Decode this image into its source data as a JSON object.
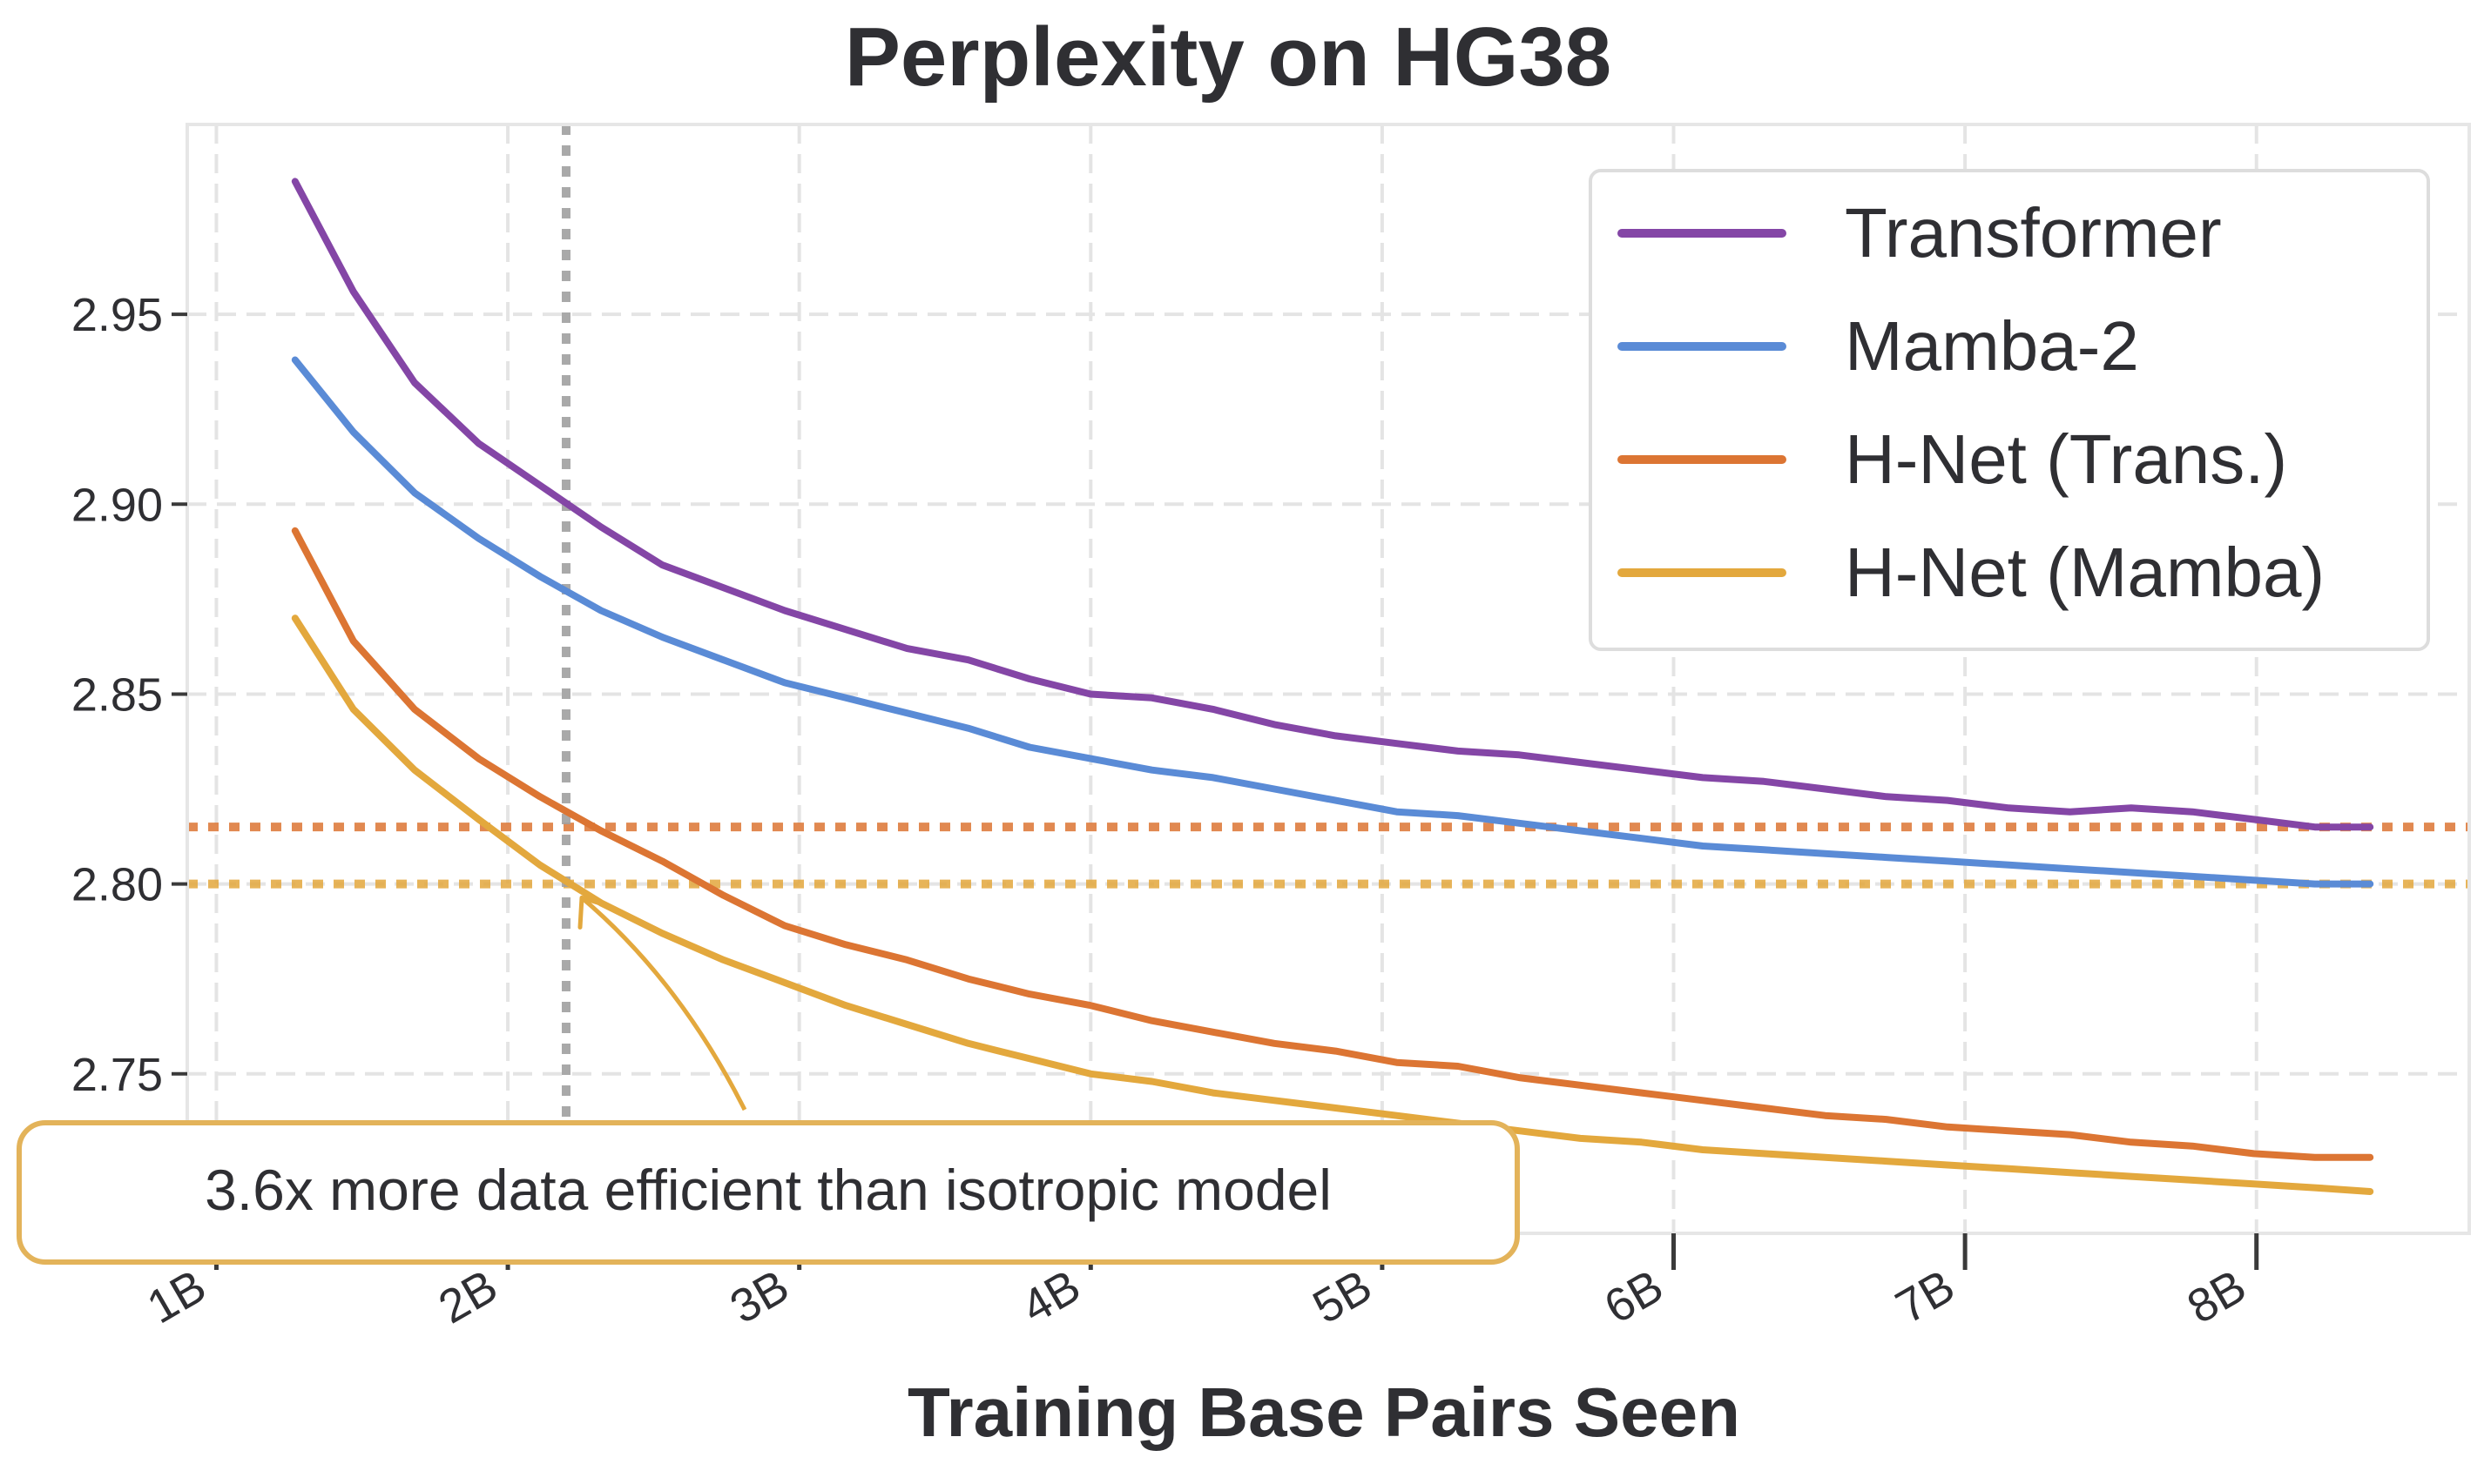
{
  "chart_data": {
    "type": "line",
    "title": "Perplexity on HG38",
    "xlabel": "Training Base Pairs Seen",
    "ylabel": "",
    "xlim": [
      0.9,
      8.73
    ],
    "ylim": [
      2.708,
      3.0
    ],
    "grid": true,
    "legend_position": "top-right",
    "x_ticks": [
      {
        "value": 1,
        "label": "1B"
      },
      {
        "value": 2,
        "label": "2B"
      },
      {
        "value": 3,
        "label": "3B"
      },
      {
        "value": 4,
        "label": "4B"
      },
      {
        "value": 5,
        "label": "5B"
      },
      {
        "value": 6,
        "label": "6B"
      },
      {
        "value": 7,
        "label": "7B"
      },
      {
        "value": 8,
        "label": "8B"
      }
    ],
    "y_ticks": [
      {
        "value": 2.75,
        "label": "2.75"
      },
      {
        "value": 2.8,
        "label": "2.80"
      },
      {
        "value": 2.85,
        "label": "2.85"
      },
      {
        "value": 2.9,
        "label": "2.90"
      },
      {
        "value": 2.95,
        "label": "2.95"
      }
    ],
    "x": [
      1.27,
      1.47,
      1.68,
      1.9,
      2.11,
      2.32,
      2.53,
      2.74,
      2.95,
      3.16,
      3.37,
      3.58,
      3.79,
      4.0,
      4.21,
      4.42,
      4.63,
      4.84,
      5.05,
      5.26,
      5.47,
      5.68,
      5.89,
      6.1,
      6.31,
      6.52,
      6.73,
      6.94,
      7.15,
      7.36,
      7.57,
      7.78,
      7.99,
      8.2,
      8.39
    ],
    "series": [
      {
        "name": "Transformer",
        "color": "#8446a6",
        "values": [
          2.985,
          2.956,
          2.932,
          2.916,
          2.905,
          2.894,
          2.884,
          2.878,
          2.872,
          2.867,
          2.862,
          2.859,
          2.854,
          2.85,
          2.849,
          2.846,
          2.842,
          2.839,
          2.837,
          2.835,
          2.834,
          2.832,
          2.83,
          2.828,
          2.827,
          2.825,
          2.823,
          2.822,
          2.82,
          2.819,
          2.82,
          2.819,
          2.817,
          2.815,
          2.815
        ]
      },
      {
        "name": "Mamba-2",
        "color": "#5a8bd6",
        "values": [
          2.938,
          2.919,
          2.903,
          2.891,
          2.881,
          2.872,
          2.865,
          2.859,
          2.853,
          2.849,
          2.845,
          2.841,
          2.836,
          2.833,
          2.83,
          2.828,
          2.825,
          2.822,
          2.819,
          2.818,
          2.816,
          2.814,
          2.812,
          2.81,
          2.809,
          2.808,
          2.807,
          2.806,
          2.805,
          2.804,
          2.803,
          2.802,
          2.801,
          2.8,
          2.8
        ]
      },
      {
        "name": "H-Net (Trans.)",
        "color": "#dc7533",
        "values": [
          2.893,
          2.864,
          2.846,
          2.833,
          2.823,
          2.814,
          2.806,
          2.797,
          2.789,
          2.784,
          2.78,
          2.775,
          2.771,
          2.768,
          2.764,
          2.761,
          2.758,
          2.756,
          2.753,
          2.752,
          2.749,
          2.747,
          2.745,
          2.743,
          2.741,
          2.739,
          2.738,
          2.736,
          2.735,
          2.734,
          2.732,
          2.731,
          2.729,
          2.728,
          2.728
        ]
      },
      {
        "name": "H-Net (Mamba)",
        "color": "#e3a83d",
        "values": [
          2.87,
          2.846,
          2.83,
          2.817,
          2.805,
          2.795,
          2.787,
          2.78,
          2.774,
          2.768,
          2.763,
          2.758,
          2.754,
          2.75,
          2.748,
          2.745,
          2.743,
          2.741,
          2.739,
          2.737,
          2.735,
          2.733,
          2.732,
          2.73,
          2.729,
          2.728,
          2.727,
          2.726,
          2.725,
          2.724,
          2.723,
          2.722,
          2.721,
          2.72,
          2.719
        ]
      }
    ],
    "reference_lines": [
      {
        "orientation": "horizontal",
        "value": 2.815,
        "style": "dotted",
        "color": "#dc7533"
      },
      {
        "orientation": "horizontal",
        "value": 2.8,
        "style": "dotted",
        "color": "#e3a83d"
      },
      {
        "orientation": "vertical",
        "value": 2.2,
        "style": "dotted",
        "color": "#a0a0a0"
      }
    ],
    "annotations": [
      {
        "text": "3.6x more data efficient than isotropic model",
        "arrow_to": {
          "x": 2.2,
          "y": 2.795
        },
        "border_color": "#e3b35a"
      }
    ]
  }
}
